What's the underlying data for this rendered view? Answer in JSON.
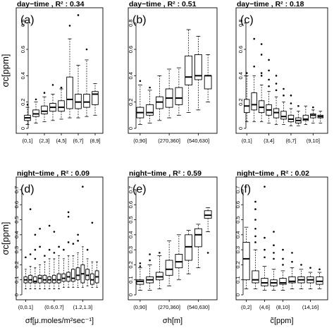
{
  "chart_data": [
    {
      "type": "boxplot",
      "title": "day−time , R² : 0.34",
      "panel_label": "(a)",
      "ylabel": "σc[ppm]",
      "xlabel": "",
      "ylim": [
        0,
        0.9
      ],
      "yticks": [
        0,
        0.2,
        0.4,
        0.6,
        0.8
      ],
      "tick_labels": [
        "(0,1]",
        "(2,3]",
        "(4,5]",
        "(6,7]",
        "(8,9]"
      ],
      "tick_positions": [
        1,
        3,
        5,
        7,
        9
      ],
      "boxes": [
        {
          "lo": 0.03,
          "q1": 0.06,
          "med": 0.08,
          "q3": 0.1,
          "hi": 0.16,
          "out": [
            0.18
          ]
        },
        {
          "lo": 0.04,
          "q1": 0.09,
          "med": 0.11,
          "q3": 0.14,
          "hi": 0.2,
          "out": [
            0.22
          ]
        },
        {
          "lo": 0.05,
          "q1": 0.11,
          "med": 0.13,
          "q3": 0.17,
          "hi": 0.24,
          "out": [
            0.27
          ]
        },
        {
          "lo": 0.06,
          "q1": 0.13,
          "med": 0.16,
          "q3": 0.19,
          "hi": 0.26,
          "out": [
            0.33
          ]
        },
        {
          "lo": 0.07,
          "q1": 0.13,
          "med": 0.16,
          "q3": 0.21,
          "hi": 0.3,
          "out": [
            0.31
          ]
        },
        {
          "lo": 0.08,
          "q1": 0.15,
          "med": 0.22,
          "q3": 0.39,
          "hi": 0.68,
          "out": [
            0.78
          ]
        },
        {
          "lo": 0.08,
          "q1": 0.15,
          "med": 0.2,
          "q3": 0.26,
          "hi": 0.48,
          "out": [
            0.86
          ]
        },
        {
          "lo": 0.09,
          "q1": 0.16,
          "med": 0.2,
          "q3": 0.26,
          "hi": 0.52,
          "out": [
            0.6
          ]
        },
        {
          "lo": 0.1,
          "q1": 0.18,
          "med": 0.26,
          "q3": 0.28,
          "hi": 0.34,
          "out": []
        }
      ]
    },
    {
      "type": "boxplot",
      "title": "day−time , R² : 0.51",
      "panel_label": "(b)",
      "ylabel": "",
      "xlabel": "",
      "ylim": [
        0,
        0.9
      ],
      "yticks": [
        0,
        0.2,
        0.4,
        0.6,
        0.8
      ],
      "tick_labels": [
        "(0,90]",
        "(270,360]",
        "(540,630]"
      ],
      "tick_positions": [
        1,
        4,
        7
      ],
      "boxes": [
        {
          "lo": 0.03,
          "q1": 0.08,
          "med": 0.12,
          "q3": 0.16,
          "hi": 0.33,
          "out": [
            0.36
          ]
        },
        {
          "lo": 0.04,
          "q1": 0.1,
          "med": 0.12,
          "q3": 0.18,
          "hi": 0.29,
          "out": [
            0.31
          ]
        },
        {
          "lo": 0.06,
          "q1": 0.15,
          "med": 0.2,
          "q3": 0.24,
          "hi": 0.4,
          "out": []
        },
        {
          "lo": 0.08,
          "q1": 0.16,
          "med": 0.23,
          "q3": 0.3,
          "hi": 0.45,
          "out": []
        },
        {
          "lo": 0.1,
          "q1": 0.18,
          "med": 0.23,
          "q3": 0.31,
          "hi": 0.46,
          "out": []
        },
        {
          "lo": 0.12,
          "q1": 0.33,
          "med": 0.39,
          "q3": 0.55,
          "hi": 0.75,
          "out": []
        },
        {
          "lo": 0.14,
          "q1": 0.37,
          "med": 0.4,
          "q3": 0.56,
          "hi": 0.7,
          "out": []
        },
        {
          "lo": 0.2,
          "q1": 0.3,
          "med": 0.4,
          "q3": 0.4,
          "hi": 0.56,
          "out": []
        }
      ]
    },
    {
      "type": "boxplot",
      "title": "day−time , R² : 0.18",
      "panel_label": "(c)",
      "ylabel": "",
      "xlabel": "",
      "ylim": [
        0,
        0.9
      ],
      "yticks": [
        0,
        0.2,
        0.4,
        0.6,
        0.8
      ],
      "tick_labels": [
        "(0,1]",
        "(3,4]",
        "(6,7]",
        "(9,10]"
      ],
      "tick_positions": [
        1,
        4,
        7,
        10
      ],
      "boxes": [
        {
          "lo": 0.05,
          "q1": 0.12,
          "med": 0.17,
          "q3": 0.22,
          "hi": 0.4,
          "out": [
            0.42
          ]
        },
        {
          "lo": 0.05,
          "q1": 0.14,
          "med": 0.18,
          "q3": 0.27,
          "hi": 0.4,
          "out": [
            0.47,
            0.68
          ]
        },
        {
          "lo": 0.05,
          "q1": 0.12,
          "med": 0.16,
          "q3": 0.21,
          "hi": 0.33,
          "out": [
            0.4,
            0.42,
            0.56,
            0.64
          ]
        },
        {
          "lo": 0.04,
          "q1": 0.1,
          "med": 0.14,
          "q3": 0.18,
          "hi": 0.28,
          "out": [
            0.32,
            0.37,
            0.44,
            0.52
          ]
        },
        {
          "lo": 0.03,
          "q1": 0.08,
          "med": 0.12,
          "q3": 0.15,
          "hi": 0.24,
          "out": [
            0.29,
            0.34,
            0.4
          ]
        },
        {
          "lo": 0.03,
          "q1": 0.07,
          "med": 0.09,
          "q3": 0.13,
          "hi": 0.2,
          "out": [
            0.25,
            0.3
          ]
        },
        {
          "lo": 0.02,
          "q1": 0.05,
          "med": 0.07,
          "q3": 0.1,
          "hi": 0.15,
          "out": [
            0.19,
            0.25
          ]
        },
        {
          "lo": 0.02,
          "q1": 0.04,
          "med": 0.06,
          "q3": 0.08,
          "hi": 0.13,
          "out": [
            0.17
          ]
        },
        {
          "lo": 0.03,
          "q1": 0.06,
          "med": 0.07,
          "q3": 0.1,
          "hi": 0.17,
          "out": []
        },
        {
          "lo": 0.04,
          "q1": 0.08,
          "med": 0.1,
          "q3": 0.11,
          "hi": 0.14,
          "out": [
            0.16
          ]
        },
        {
          "lo": 0.04,
          "q1": 0.08,
          "med": 0.09,
          "q3": 0.1,
          "hi": 0.13,
          "out": []
        }
      ]
    },
    {
      "type": "boxplot",
      "title": "night−time , R² : 0.09",
      "panel_label": "(d)",
      "ylabel": "σc[ppm]",
      "xlabel": "σf[μ.moles/m²sec⁻¹]",
      "ylim": [
        0,
        0.77
      ],
      "yticks": [
        0,
        0.1,
        0.2,
        0.3,
        0.4,
        0.5,
        0.6,
        0.7
      ],
      "tick_labels": [
        "(0,0.1]",
        "(0.6,0.7]",
        "(1.2,1.3]"
      ],
      "tick_positions": [
        1,
        7,
        13
      ],
      "boxes": [
        {
          "lo": 0.04,
          "q1": 0.08,
          "med": 0.1,
          "q3": 0.12,
          "hi": 0.17,
          "out": [
            0.25
          ]
        },
        {
          "lo": 0.04,
          "q1": 0.08,
          "med": 0.1,
          "q3": 0.13,
          "hi": 0.19,
          "out": [
            0.27,
            0.57
          ]
        },
        {
          "lo": 0.04,
          "q1": 0.08,
          "med": 0.09,
          "q3": 0.12,
          "hi": 0.18,
          "out": [
            0.24,
            0.3,
            0.4
          ]
        },
        {
          "lo": 0.04,
          "q1": 0.08,
          "med": 0.11,
          "q3": 0.13,
          "hi": 0.2,
          "out": [
            0.32,
            0.44
          ]
        },
        {
          "lo": 0.04,
          "q1": 0.08,
          "med": 0.1,
          "q3": 0.13,
          "hi": 0.22,
          "out": [
            0.26
          ]
        },
        {
          "lo": 0.04,
          "q1": 0.08,
          "med": 0.1,
          "q3": 0.12,
          "hi": 0.24,
          "out": [
            0.3,
            0.46
          ]
        },
        {
          "lo": 0.04,
          "q1": 0.08,
          "med": 0.1,
          "q3": 0.13,
          "hi": 0.24,
          "out": [
            0.28,
            0.42
          ]
        },
        {
          "lo": 0.04,
          "q1": 0.08,
          "med": 0.1,
          "q3": 0.14,
          "hi": 0.26,
          "out": [
            0.32
          ]
        },
        {
          "lo": 0.05,
          "q1": 0.09,
          "med": 0.11,
          "q3": 0.14,
          "hi": 0.24,
          "out": [
            0.3
          ]
        },
        {
          "lo": 0.05,
          "q1": 0.09,
          "med": 0.12,
          "q3": 0.15,
          "hi": 0.26,
          "out": [
            0.35,
            0.52,
            0.55
          ]
        },
        {
          "lo": 0.05,
          "q1": 0.09,
          "med": 0.11,
          "q3": 0.17,
          "hi": 0.26,
          "out": [
            0.34
          ]
        },
        {
          "lo": 0.05,
          "q1": 0.1,
          "med": 0.13,
          "q3": 0.18,
          "hi": 0.28,
          "out": [
            0.36,
            0.4
          ]
        },
        {
          "lo": 0.05,
          "q1": 0.08,
          "med": 0.14,
          "q3": 0.2,
          "hi": 0.32,
          "out": [
            0.72
          ]
        },
        {
          "lo": 0.06,
          "q1": 0.1,
          "med": 0.13,
          "q3": 0.17,
          "hi": 0.24,
          "out": [
            0.3
          ]
        },
        {
          "lo": 0.05,
          "q1": 0.07,
          "med": 0.1,
          "q3": 0.14,
          "hi": 0.22,
          "out": [
            0.48
          ]
        },
        {
          "lo": 0.05,
          "q1": 0.08,
          "med": 0.12,
          "q3": 0.16,
          "hi": 0.22,
          "out": []
        }
      ]
    },
    {
      "type": "boxplot",
      "title": "night−time , R² : 0.59",
      "panel_label": "(e)",
      "ylabel": "",
      "xlabel": "σh[m]",
      "ylim": [
        0,
        0.77
      ],
      "yticks": [
        0,
        0.1,
        0.2,
        0.3,
        0.4,
        0.5,
        0.6,
        0.7
      ],
      "tick_labels": [
        "(0,90]",
        "(270,360]",
        "(540,630]"
      ],
      "tick_positions": [
        1,
        4,
        7
      ],
      "boxes": [
        {
          "lo": 0.03,
          "q1": 0.07,
          "med": 0.09,
          "q3": 0.1,
          "hi": 0.18,
          "out": [
            0.19,
            0.21
          ]
        },
        {
          "lo": 0.03,
          "q1": 0.08,
          "med": 0.1,
          "q3": 0.12,
          "hi": 0.2,
          "out": [
            0.23,
            0.27
          ]
        },
        {
          "lo": 0.04,
          "q1": 0.1,
          "med": 0.12,
          "q3": 0.15,
          "hi": 0.26,
          "out": [
            0.28
          ]
        },
        {
          "lo": 0.06,
          "q1": 0.13,
          "med": 0.17,
          "q3": 0.23,
          "hi": 0.36,
          "out": []
        },
        {
          "lo": 0.1,
          "q1": 0.18,
          "med": 0.22,
          "q3": 0.27,
          "hi": 0.4,
          "out": []
        },
        {
          "lo": 0.14,
          "q1": 0.23,
          "med": 0.32,
          "q3": 0.4,
          "hi": 0.43,
          "out": []
        },
        {
          "lo": 0.18,
          "q1": 0.32,
          "med": 0.4,
          "q3": 0.44,
          "hi": 0.47,
          "out": []
        },
        {
          "lo": 0.42,
          "q1": 0.51,
          "med": 0.53,
          "q3": 0.56,
          "hi": 0.58,
          "out": [
            0.28
          ]
        }
      ]
    },
    {
      "type": "boxplot",
      "title": "night−time , R² : 0.02",
      "panel_label": "(f)",
      "ylabel": "",
      "xlabel": "c̃[ppm]",
      "ylim": [
        0,
        0.77
      ],
      "yticks": [
        0,
        0.1,
        0.2,
        0.3,
        0.4,
        0.5,
        0.6,
        0.7
      ],
      "tick_labels": [
        "(0,2]",
        "(4,6]",
        "(8,10]",
        "(14,16]"
      ],
      "tick_positions": [
        1,
        3,
        5,
        8
      ],
      "boxes": [
        {
          "lo": 0.04,
          "q1": 0.1,
          "med": 0.24,
          "q3": 0.35,
          "hi": 0.45,
          "out": []
        },
        {
          "lo": 0.04,
          "q1": 0.08,
          "med": 0.1,
          "q3": 0.16,
          "hi": 0.3,
          "out": [
            0.35,
            0.39,
            0.44,
            0.5,
            0.57,
            0.62
          ]
        },
        {
          "lo": 0.03,
          "q1": 0.06,
          "med": 0.08,
          "q3": 0.11,
          "hi": 0.19,
          "out": [
            0.25,
            0.3,
            0.38,
            0.72
          ]
        },
        {
          "lo": 0.03,
          "q1": 0.06,
          "med": 0.08,
          "q3": 0.1,
          "hi": 0.17,
          "out": [
            0.24,
            0.28,
            0.33,
            0.42
          ]
        },
        {
          "lo": 0.03,
          "q1": 0.07,
          "med": 0.08,
          "q3": 0.11,
          "hi": 0.16,
          "out": [
            0.2,
            0.24,
            0.3
          ]
        },
        {
          "lo": 0.04,
          "q1": 0.08,
          "med": 0.09,
          "q3": 0.12,
          "hi": 0.18,
          "out": [
            0.22,
            0.28
          ]
        },
        {
          "lo": 0.04,
          "q1": 0.08,
          "med": 0.1,
          "q3": 0.12,
          "hi": 0.17,
          "out": [
            0.2
          ]
        },
        {
          "lo": 0.04,
          "q1": 0.08,
          "med": 0.1,
          "q3": 0.12,
          "hi": 0.15,
          "out": [
            0.18
          ]
        },
        {
          "lo": 0.04,
          "q1": 0.07,
          "med": 0.09,
          "q3": 0.12,
          "hi": 0.15,
          "out": [
            0.17
          ]
        }
      ]
    }
  ]
}
